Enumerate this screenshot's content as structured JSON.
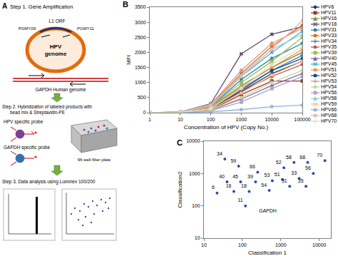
{
  "diagram": {
    "panel": "A",
    "step1": "Step 1. Gene Amplification",
    "orf": "L1 ORF",
    "primer_left": "PGMY09",
    "primer_right": "PGMY11",
    "genome": [
      "HPV",
      "genome"
    ],
    "gapdh": "GAPDH Human genome",
    "step2": [
      "Step 2. Hybridization of labeled products with",
      "bead mix & Streptavidin-PE"
    ],
    "hpv_probe": "HPV specific probe",
    "gapdh_probe": "GAPDH specific probe",
    "plate": "96 well filter plate",
    "step3": "Step 3. Data analysis using Luminex 100/200"
  },
  "chart_data": [
    {
      "panel": "B",
      "type": "line",
      "xlabel": "Concentration of HPV (Copy No.)",
      "ylabel": "MFI",
      "log": "x",
      "x": [
        1,
        10,
        100,
        1000,
        10000,
        100000
      ],
      "xlim": [
        1,
        100000
      ],
      "xticks": [
        1,
        10,
        100,
        1000,
        10000,
        100000
      ],
      "ylim": [
        0,
        3500
      ],
      "yticks": [
        0,
        500,
        1000,
        1500,
        2000,
        2500,
        3000,
        3500
      ],
      "grid": false,
      "legend": "right",
      "series": [
        {
          "name": "HPV6",
          "color": "#17375E",
          "marker": "diamond",
          "values": [
            0,
            10,
            120,
            700,
            1300,
            1700
          ]
        },
        {
          "name": "HPV11",
          "color": "#953735",
          "marker": "square",
          "values": [
            0,
            10,
            100,
            600,
            1050,
            1050
          ]
        },
        {
          "name": "HPV16",
          "color": "#77933C",
          "marker": "triangle",
          "values": [
            0,
            15,
            180,
            900,
            1500,
            2000
          ]
        },
        {
          "name": "HPV18",
          "color": "#604A7B",
          "marker": "x",
          "values": [
            0,
            20,
            300,
            1950,
            2600,
            2850
          ]
        },
        {
          "name": "HPV31",
          "color": "#31859C",
          "marker": "star",
          "values": [
            0,
            15,
            200,
            1100,
            1800,
            2300
          ]
        },
        {
          "name": "HPV33",
          "color": "#E46C0A",
          "marker": "circle",
          "values": [
            0,
            20,
            250,
            1300,
            2200,
            2900
          ]
        },
        {
          "name": "HPV34",
          "color": "#4F81BD",
          "marker": "plus",
          "values": [
            0,
            10,
            150,
            800,
            1400,
            1900
          ]
        },
        {
          "name": "HPV35",
          "color": "#C0504D",
          "marker": "diamond",
          "values": [
            0,
            10,
            120,
            700,
            1200,
            1600
          ]
        },
        {
          "name": "HPV39",
          "color": "#9BBB59",
          "marker": "square",
          "values": [
            0,
            15,
            200,
            1000,
            1700,
            2500
          ]
        },
        {
          "name": "HPV40",
          "color": "#8064A2",
          "marker": "triangle",
          "values": [
            0,
            10,
            80,
            450,
            900,
            1300
          ]
        },
        {
          "name": "HPV45",
          "color": "#4BACC6",
          "marker": "x",
          "values": [
            0,
            20,
            220,
            1200,
            2000,
            2700
          ]
        },
        {
          "name": "HPV51",
          "color": "#F79646",
          "marker": "star",
          "values": [
            0,
            10,
            160,
            850,
            1500,
            2100
          ]
        },
        {
          "name": "HPV52",
          "color": "#1F497D",
          "marker": "circle",
          "values": [
            0,
            15,
            130,
            750,
            1400,
            1800
          ]
        },
        {
          "name": "HPV53",
          "color": "#D99694",
          "marker": "plus",
          "values": [
            0,
            20,
            280,
            1400,
            2300,
            2800
          ]
        },
        {
          "name": "HPV54",
          "color": "#C3D69B",
          "marker": "diamond",
          "values": [
            0,
            10,
            90,
            500,
            1000,
            1400
          ]
        },
        {
          "name": "HPV56",
          "color": "#B3A2C7",
          "marker": "square",
          "values": [
            0,
            5,
            60,
            350,
            800,
            1200
          ]
        },
        {
          "name": "HPV58",
          "color": "#93CDDD",
          "marker": "triangle",
          "values": [
            0,
            15,
            240,
            1250,
            2100,
            2600
          ]
        },
        {
          "name": "HPV59",
          "color": "#FAC090",
          "marker": "x",
          "values": [
            0,
            10,
            110,
            650,
            1250,
            1700
          ]
        },
        {
          "name": "HPV66",
          "color": "#95B3D7",
          "marker": "star",
          "values": [
            0,
            5,
            30,
            100,
            200,
            250
          ]
        },
        {
          "name": "HPV68",
          "color": "#E6B9B8",
          "marker": "circle",
          "values": [
            0,
            15,
            230,
            1200,
            2100,
            3050
          ]
        },
        {
          "name": "HPV70",
          "color": "#D7E4BD",
          "marker": "plus",
          "values": [
            0,
            10,
            140,
            800,
            1600,
            2200
          ]
        }
      ]
    },
    {
      "panel": "C",
      "type": "scatter",
      "xlabel": "Classification 1",
      "ylabel": "Classification2",
      "log": true,
      "xlim": [
        10,
        20000
      ],
      "xticks": [
        10,
        100,
        1000,
        10000
      ],
      "ylim": [
        10,
        10000
      ],
      "yticks": [
        10,
        100,
        1000,
        10000
      ],
      "grid": false,
      "color": "#2E4FA0",
      "points": [
        {
          "label": "6",
          "x": 22,
          "y": 250
        },
        {
          "label": "34",
          "x": 35,
          "y": 2800
        },
        {
          "label": "59",
          "x": 80,
          "y": 1700
        },
        {
          "label": "66",
          "x": 250,
          "y": 1100
        },
        {
          "label": "52",
          "x": 1200,
          "y": 1500
        },
        {
          "label": "58",
          "x": 2200,
          "y": 2200
        },
        {
          "label": "68",
          "x": 5000,
          "y": 2200
        },
        {
          "label": "70",
          "x": 14000,
          "y": 2500
        },
        {
          "label": "56",
          "x": 7000,
          "y": 1000
        },
        {
          "label": "40",
          "x": 40,
          "y": 550
        },
        {
          "label": "45",
          "x": 90,
          "y": 550
        },
        {
          "label": "39",
          "x": 220,
          "y": 550
        },
        {
          "label": "53",
          "x": 600,
          "y": 600
        },
        {
          "label": "16",
          "x": 60,
          "y": 280
        },
        {
          "label": "18",
          "x": 150,
          "y": 280
        },
        {
          "label": "54",
          "x": 500,
          "y": 300
        },
        {
          "label": "51",
          "x": 1100,
          "y": 650
        },
        {
          "label": "31",
          "x": 1700,
          "y": 400
        },
        {
          "label": "33",
          "x": 3000,
          "y": 700
        },
        {
          "label": "35",
          "x": 4500,
          "y": 400
        },
        {
          "label": "11",
          "x": 120,
          "y": 100
        }
      ],
      "annotations": [
        {
          "text": "GAPDH",
          "x": 250,
          "y": 70
        }
      ]
    }
  ]
}
